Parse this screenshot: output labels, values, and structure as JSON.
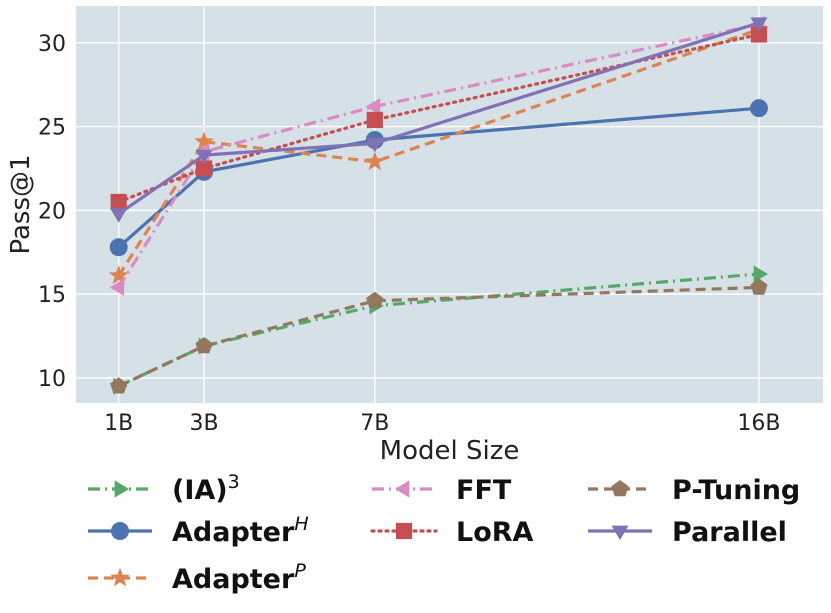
{
  "chart_data": {
    "type": "line",
    "title": "",
    "xlabel": "Model Size",
    "ylabel": "Pass@1",
    "x": [
      1,
      3,
      7,
      16
    ],
    "x_tick_labels": [
      "1B",
      "3B",
      "7B",
      "16B"
    ],
    "xlim": [
      0,
      17.5
    ],
    "ylim": [
      8.5,
      32.2
    ],
    "y_ticks": [
      10,
      15,
      20,
      25,
      30
    ],
    "grid": true,
    "background": "#d5e1e6",
    "legend_position": "below",
    "series": [
      {
        "name": "(IA)",
        "name_sup": "3",
        "color": "#55a868",
        "dash": "dashdot",
        "marker": "triangle-right",
        "values": [
          9.5,
          11.9,
          14.3,
          16.2
        ]
      },
      {
        "name": "Adapter",
        "name_sup": "H",
        "color": "#4c72b0",
        "dash": "solid",
        "marker": "circle",
        "values": [
          17.8,
          22.3,
          24.2,
          26.1
        ]
      },
      {
        "name": "Adapter",
        "name_sup": "P",
        "color": "#dd8452",
        "dash": "dashed",
        "marker": "star",
        "values": [
          16.1,
          24.1,
          22.9,
          30.8
        ]
      },
      {
        "name": "FFT",
        "name_sup": "",
        "color": "#da8bc3",
        "dash": "dashdot",
        "marker": "triangle-left",
        "values": [
          15.4,
          23.5,
          26.2,
          31.1
        ]
      },
      {
        "name": "LoRA",
        "name_sup": "",
        "color": "#c44e52",
        "dash": "dotted",
        "marker": "square",
        "values": [
          20.5,
          22.5,
          25.4,
          30.5
        ]
      },
      {
        "name": "P-Tuning",
        "name_sup": "",
        "color": "#937860",
        "dash": "dashed",
        "marker": "pentagon",
        "values": [
          9.5,
          11.9,
          14.6,
          15.4
        ]
      },
      {
        "name": "Parallel",
        "name_sup": "",
        "color": "#8172b3",
        "dash": "solid",
        "marker": "triangle-down",
        "values": [
          19.8,
          23.3,
          24.0,
          31.2
        ]
      }
    ]
  }
}
